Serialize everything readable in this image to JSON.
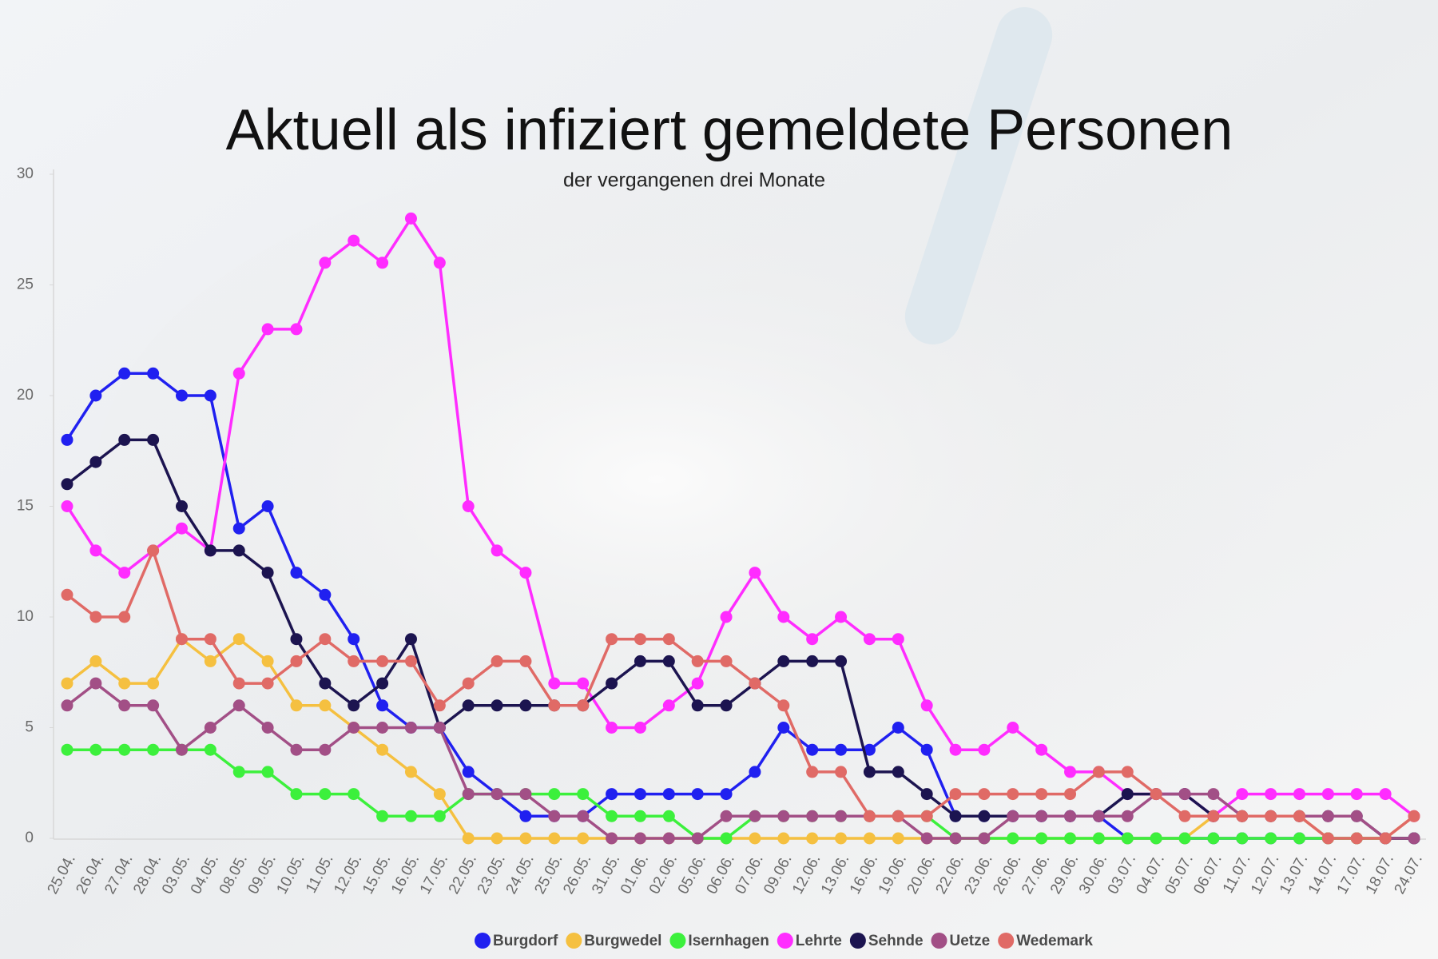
{
  "chart_data": {
    "type": "line",
    "title": "Aktuell als infiziert gemeldete Personen",
    "subtitle": "der vergangenen drei Monate",
    "categories": [
      "25.04.",
      "26.04.",
      "27.04.",
      "28.04.",
      "03.05.",
      "04.05.",
      "08.05.",
      "09.05.",
      "10.05.",
      "11.05.",
      "12.05.",
      "15.05.",
      "16.05.",
      "17.05.",
      "22.05.",
      "23.05.",
      "24.05.",
      "25.05.",
      "26.05.",
      "31.05.",
      "01.06.",
      "02.06.",
      "05.06.",
      "06.06.",
      "07.06.",
      "09.06.",
      "12.06.",
      "13.06.",
      "16.06.",
      "19.06.",
      "20.06.",
      "22.06.",
      "23.06.",
      "26.06.",
      "27.06.",
      "29.06.",
      "30.06.",
      "03.07.",
      "04.07.",
      "05.07.",
      "06.07.",
      "11.07.",
      "12.07.",
      "13.07.",
      "14.07.",
      "17.07.",
      "18.07.",
      "24.07."
    ],
    "series": [
      {
        "name": "Burgdorf",
        "color": "#2020f0",
        "values": [
          18,
          20,
          21,
          21,
          20,
          20,
          14,
          15,
          12,
          11,
          9,
          6,
          5,
          5,
          3,
          2,
          1,
          1,
          1,
          2,
          2,
          2,
          2,
          2,
          3,
          5,
          4,
          4,
          4,
          5,
          4,
          1,
          1,
          1,
          1,
          1,
          1,
          0,
          0,
          0,
          0,
          0,
          0,
          0,
          0,
          0,
          0,
          0
        ]
      },
      {
        "name": "Burgwedel",
        "color": "#f5c040",
        "values": [
          7,
          8,
          7,
          7,
          9,
          8,
          9,
          8,
          6,
          6,
          5,
          4,
          3,
          2,
          0,
          0,
          0,
          0,
          0,
          0,
          0,
          0,
          0,
          0,
          0,
          0,
          0,
          0,
          0,
          0,
          0,
          0,
          0,
          0,
          0,
          0,
          0,
          0,
          0,
          0,
          1,
          1,
          1,
          1,
          0,
          0,
          0,
          1
        ]
      },
      {
        "name": "Isernhagen",
        "color": "#3cf03c",
        "values": [
          4,
          4,
          4,
          4,
          4,
          4,
          3,
          3,
          2,
          2,
          2,
          1,
          1,
          1,
          2,
          2,
          2,
          2,
          2,
          1,
          1,
          1,
          0,
          0,
          1,
          1,
          1,
          1,
          1,
          1,
          1,
          0,
          0,
          0,
          0,
          0,
          0,
          0,
          0,
          0,
          0,
          0,
          0,
          0,
          0,
          0,
          0,
          0
        ]
      },
      {
        "name": "Lehrte",
        "color": "#ff2cff",
        "values": [
          15,
          13,
          12,
          13,
          14,
          13,
          21,
          23,
          23,
          26,
          27,
          26,
          28,
          26,
          15,
          13,
          12,
          7,
          7,
          5,
          5,
          6,
          7,
          10,
          12,
          10,
          9,
          10,
          9,
          9,
          6,
          4,
          4,
          5,
          4,
          3,
          3,
          2,
          2,
          2,
          1,
          2,
          2,
          2,
          2,
          2,
          2,
          1
        ]
      },
      {
        "name": "Sehnde",
        "color": "#1c1450",
        "values": [
          16,
          17,
          18,
          18,
          15,
          13,
          13,
          12,
          9,
          7,
          6,
          7,
          9,
          5,
          6,
          6,
          6,
          6,
          6,
          7,
          8,
          8,
          6,
          6,
          7,
          8,
          8,
          8,
          3,
          3,
          2,
          1,
          1,
          1,
          1,
          1,
          1,
          2,
          2,
          2,
          1,
          1,
          1,
          1,
          1,
          1,
          0,
          0
        ]
      },
      {
        "name": "Uetze",
        "color": "#a24f86",
        "values": [
          6,
          7,
          6,
          6,
          4,
          5,
          6,
          5,
          4,
          4,
          5,
          5,
          5,
          5,
          2,
          2,
          2,
          1,
          1,
          0,
          0,
          0,
          0,
          1,
          1,
          1,
          1,
          1,
          1,
          1,
          0,
          0,
          0,
          1,
          1,
          1,
          1,
          1,
          2,
          2,
          2,
          1,
          1,
          1,
          1,
          1,
          0,
          0
        ]
      },
      {
        "name": "Wedemark",
        "color": "#e06a66",
        "values": [
          11,
          10,
          10,
          13,
          9,
          9,
          7,
          7,
          8,
          9,
          8,
          8,
          8,
          6,
          7,
          8,
          8,
          6,
          6,
          9,
          9,
          9,
          8,
          8,
          7,
          6,
          3,
          3,
          1,
          1,
          1,
          2,
          2,
          2,
          2,
          2,
          3,
          3,
          2,
          1,
          1,
          1,
          1,
          1,
          0,
          0,
          0,
          1
        ]
      }
    ],
    "ylim": [
      0,
      30
    ],
    "yticks": [
      0,
      5,
      10,
      15,
      20,
      25,
      30
    ],
    "grid": false,
    "legend": "bottom"
  }
}
